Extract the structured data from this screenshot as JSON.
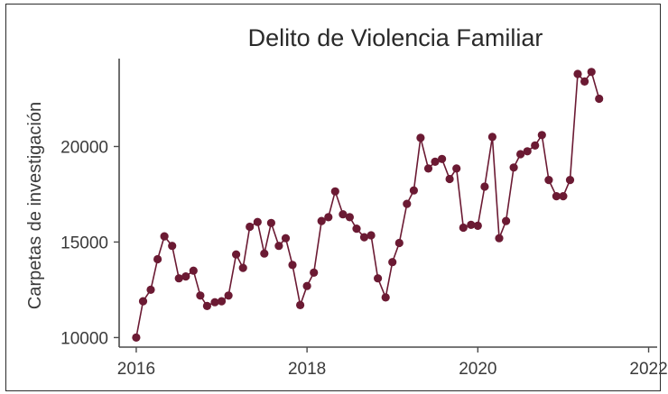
{
  "chart_data": {
    "type": "line",
    "title": "Delito de Violencia Familiar",
    "xlabel": "",
    "ylabel": "Carpetas de investigación",
    "xlim": [
      2015.8,
      2022.1
    ],
    "ylim": [
      9500,
      24600
    ],
    "x_ticks": [
      2016,
      2018,
      2020,
      2022
    ],
    "x_tick_labels": [
      "2016",
      "2018",
      "2020",
      "2022"
    ],
    "y_ticks": [
      10000,
      15000,
      20000
    ],
    "y_tick_labels": [
      "10000",
      "15000",
      "20000"
    ],
    "grid": false,
    "legend": "none",
    "color": "#6b1a33",
    "x": [
      2016.0,
      2016.08,
      2016.17,
      2016.25,
      2016.33,
      2016.42,
      2016.5,
      2016.58,
      2016.67,
      2016.75,
      2016.83,
      2016.92,
      2017.0,
      2017.08,
      2017.17,
      2017.25,
      2017.33,
      2017.42,
      2017.5,
      2017.58,
      2017.67,
      2017.75,
      2017.83,
      2017.92,
      2018.0,
      2018.08,
      2018.17,
      2018.25,
      2018.33,
      2018.42,
      2018.5,
      2018.58,
      2018.67,
      2018.75,
      2018.83,
      2018.92,
      2019.0,
      2019.08,
      2019.17,
      2019.25,
      2019.33,
      2019.42,
      2019.5,
      2019.58,
      2019.67,
      2019.75,
      2019.83,
      2019.92,
      2020.0,
      2020.08,
      2020.17,
      2020.25,
      2020.33,
      2020.42,
      2020.5,
      2020.58,
      2020.67,
      2020.75,
      2020.83,
      2020.92,
      2021.0,
      2021.08,
      2021.17,
      2021.25,
      2021.33,
      2021.42
    ],
    "y": [
      10000,
      11900,
      12500,
      14100,
      15300,
      14800,
      13100,
      13200,
      13500,
      12200,
      11650,
      11850,
      11900,
      12200,
      14350,
      13650,
      15800,
      16050,
      14400,
      16000,
      14800,
      15200,
      13800,
      11700,
      12700,
      13400,
      16100,
      16300,
      17650,
      16450,
      16300,
      15700,
      15250,
      15350,
      13100,
      12100,
      13950,
      14950,
      17000,
      17700,
      20450,
      18850,
      19200,
      19350,
      18300,
      18850,
      15750,
      15900,
      15850,
      17900,
      20500,
      15200,
      16100,
      18900,
      19600,
      19750,
      20050,
      20600,
      18250,
      17400,
      17400,
      18250,
      23800,
      23400,
      23900,
      22500
    ]
  }
}
